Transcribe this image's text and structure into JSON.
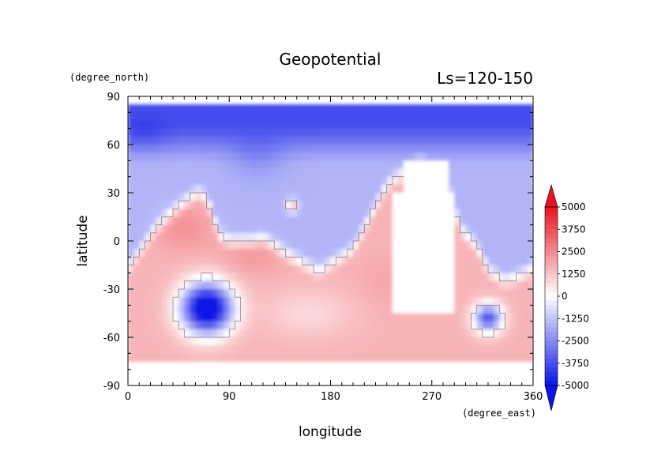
{
  "chart_data": {
    "type": "heatmap",
    "title": "Geopotential",
    "subtitle": "Ls=120-150",
    "xlabel": "longitude",
    "ylabel": "latitude",
    "x_units": "(degree_east)",
    "y_units": "(degree_north)",
    "xlim": [
      0,
      360
    ],
    "ylim": [
      -90,
      90
    ],
    "x_ticks": [
      "0",
      "90",
      "180",
      "270",
      "360"
    ],
    "y_ticks": [
      "90",
      "60",
      "30",
      "0",
      "-30",
      "-60",
      "-90"
    ],
    "x_tick_values": [
      0,
      90,
      180,
      270,
      360
    ],
    "y_tick_values": [
      90,
      60,
      30,
      0,
      -30,
      -60,
      -90
    ],
    "data_lat_range": [
      -75,
      85
    ],
    "zero_contour": true,
    "missing_color": "#ffffff",
    "colorbar": {
      "range": [
        -5000,
        5000
      ],
      "extend": "both",
      "tick_values": [
        5000,
        3750,
        2500,
        1250,
        0,
        -1250,
        -2500,
        -3750,
        -5000
      ],
      "tick_labels": [
        "5000",
        "3750",
        "2500",
        "1250",
        "0",
        "-1250",
        "-2500",
        "-3750",
        "-5000"
      ],
      "high_color": "#e6141e",
      "low_color": "#0a14e6",
      "mid_color": "#ffffff"
    },
    "features": [
      {
        "name": "northern polar low",
        "lon_range": [
          0,
          360
        ],
        "lat_range": [
          45,
          85
        ],
        "value": -4500
      },
      {
        "name": "southern basin low (Hellas)",
        "lon": 70,
        "lat": -42,
        "value": -4500
      },
      {
        "name": "southern basin low (Argyre)",
        "lon": 320,
        "lat": -48,
        "value": -2500
      },
      {
        "name": "Tharsis high (missing data)",
        "lon_range": [
          225,
          300
        ],
        "lat_range": [
          -50,
          50
        ],
        "value": "missing"
      },
      {
        "name": "Elysium high",
        "lon": 146,
        "lat": 22,
        "value": 1250
      },
      {
        "name": "southern highlands",
        "lon_range": [
          0,
          360
        ],
        "lat_range": [
          -70,
          0
        ],
        "value": 1500
      }
    ]
  }
}
